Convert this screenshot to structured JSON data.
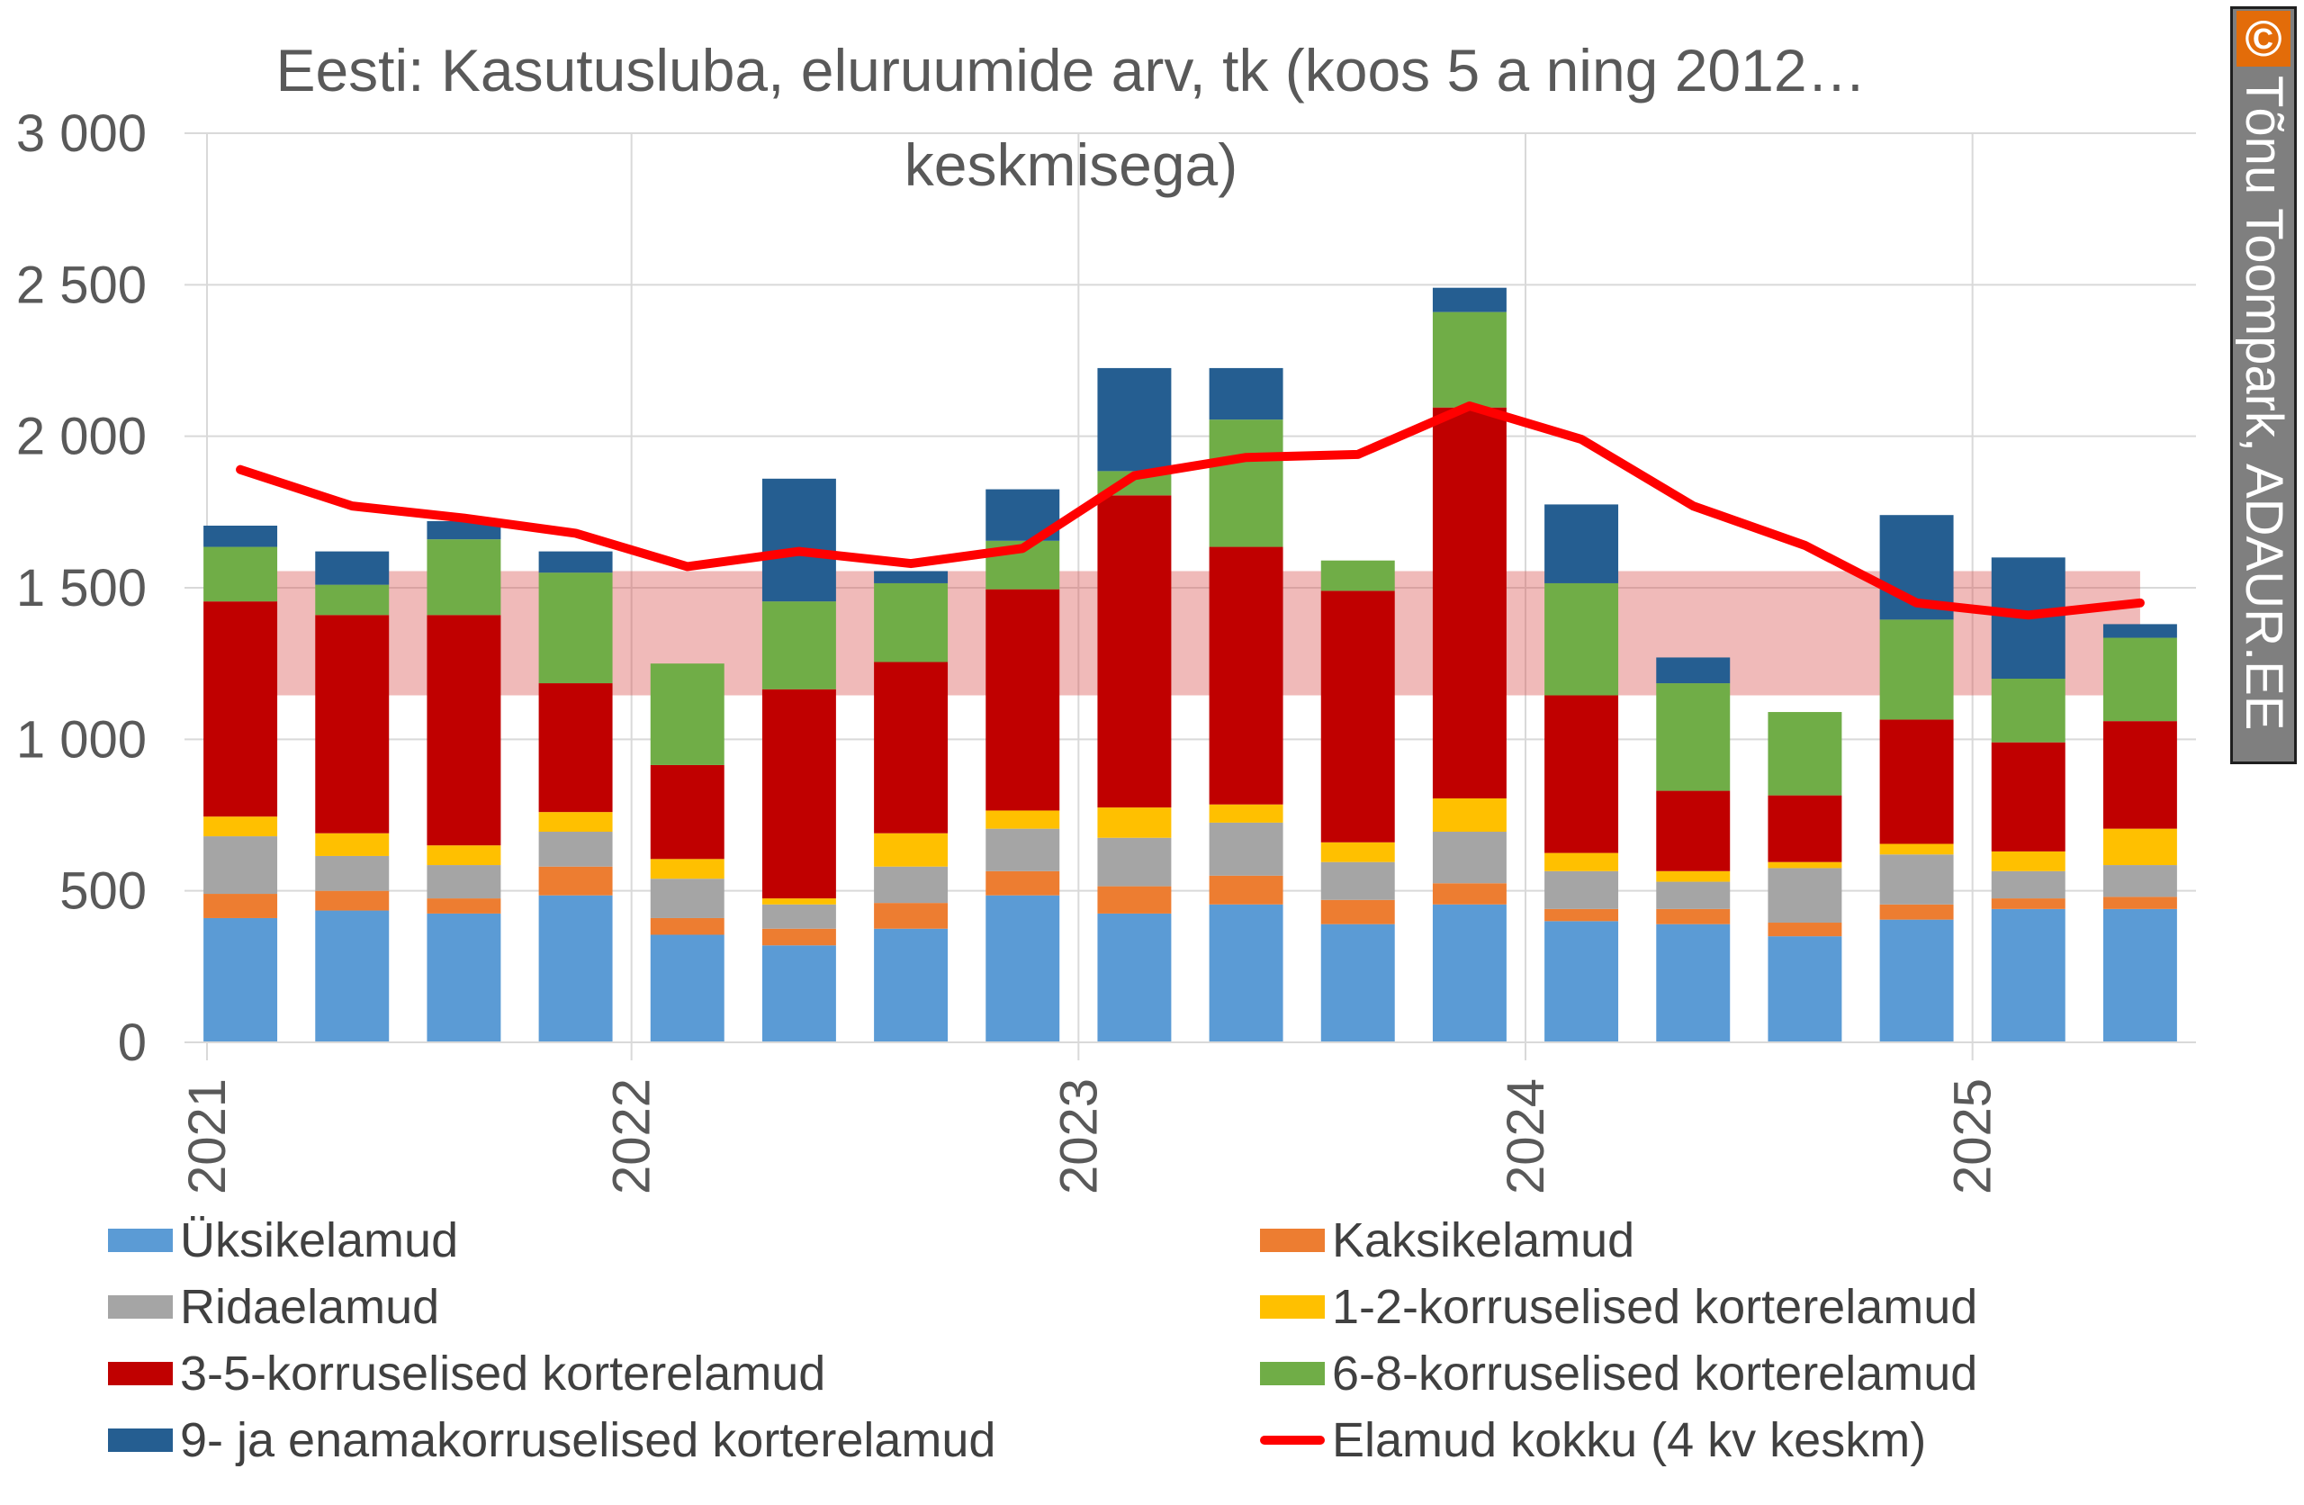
{
  "chart_data": {
    "type": "bar",
    "title": "Eesti: Kasutusluba, eluruumide arv, tk (koos 5 a ning 2012…",
    "title_line2": "keskmisega)",
    "stacked": true,
    "ylim": [
      0,
      3000
    ],
    "yticks": [
      0,
      500,
      1000,
      1500,
      2000,
      2500,
      3000
    ],
    "ytick_labels": [
      "0",
      "500",
      "1 000",
      "1 500",
      "2 000",
      "2 500",
      "3 000"
    ],
    "xtick_labels": [
      "2021",
      "2022",
      "2023",
      "2024",
      "2025"
    ],
    "categories": [
      "2021 Q1",
      "2021 Q2",
      "2021 Q3",
      "2021 Q4",
      "2022 Q1",
      "2022 Q2",
      "2022 Q3",
      "2022 Q4",
      "2023 Q1",
      "2023 Q2",
      "2023 Q3",
      "2023 Q4",
      "2024 Q1",
      "2024 Q2",
      "2024 Q3",
      "2024 Q4",
      "2025 Q1",
      "2025 Q2"
    ],
    "series": [
      {
        "name": "Üksikelamud",
        "color": "#5b9bd5",
        "values": [
          410,
          435,
          425,
          485,
          355,
          320,
          375,
          485,
          425,
          455,
          390,
          455,
          400,
          390,
          350,
          405,
          440,
          440
        ]
      },
      {
        "name": "Kaksikelamud",
        "color": "#ed7d31",
        "values": [
          80,
          65,
          50,
          95,
          55,
          55,
          85,
          80,
          90,
          95,
          80,
          70,
          40,
          50,
          45,
          50,
          35,
          40
        ]
      },
      {
        "name": "Ridaelamud",
        "color": "#a5a5a5",
        "values": [
          190,
          115,
          110,
          115,
          130,
          80,
          120,
          140,
          160,
          175,
          125,
          170,
          125,
          90,
          180,
          165,
          90,
          105
        ]
      },
      {
        "name": "1-2-korruselised korterelamud",
        "color": "#ffc000",
        "values": [
          65,
          75,
          65,
          65,
          65,
          20,
          110,
          60,
          100,
          60,
          65,
          110,
          60,
          35,
          20,
          35,
          65,
          120
        ]
      },
      {
        "name": "3-5-korruselised korterelamud",
        "color": "#c00000",
        "values": [
          710,
          720,
          760,
          425,
          310,
          690,
          565,
          730,
          1030,
          850,
          830,
          1290,
          520,
          265,
          220,
          410,
          360,
          355
        ]
      },
      {
        "name": "6-8-korruselised korterelamud",
        "color": "#70ad47",
        "values": [
          180,
          100,
          250,
          365,
          335,
          290,
          260,
          160,
          80,
          420,
          100,
          315,
          370,
          355,
          275,
          330,
          210,
          275
        ]
      },
      {
        "name": "9- ja enamakorruselised korterelamud",
        "color": "#255e91",
        "values": [
          70,
          110,
          60,
          70,
          0,
          405,
          40,
          170,
          340,
          170,
          0,
          80,
          260,
          85,
          0,
          345,
          400,
          45
        ]
      }
    ],
    "line": {
      "name": "Elamud kokku (4 kv keskm)",
      "color": "#ff0000",
      "values": [
        1890,
        1770,
        1730,
        1680,
        1570,
        1620,
        1580,
        1630,
        1870,
        1930,
        1940,
        2100,
        1990,
        1770,
        1640,
        1450,
        1410,
        1450
      ]
    },
    "band": {
      "color": "#d9534f",
      "range": [
        1145,
        1555
      ]
    },
    "legend_position": "bottom"
  },
  "watermark": {
    "icon": "©",
    "text": "Tõnu Toompark, ADAUR.EE"
  }
}
